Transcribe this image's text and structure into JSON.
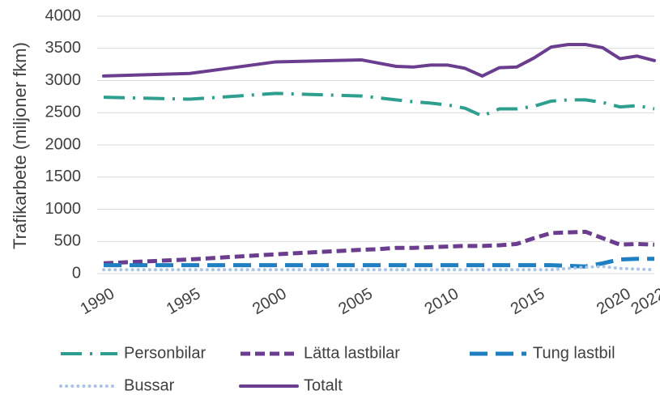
{
  "chart_data": {
    "type": "line",
    "y_label": "Trafikarbete (miljoner fkm)",
    "x": [
      1990,
      1995,
      2000,
      2005,
      2006,
      2007,
      2008,
      2009,
      2010,
      2011,
      2012,
      2013,
      2014,
      2015,
      2016,
      2017,
      2018,
      2019,
      2020,
      2021,
      2022
    ],
    "series": [
      {
        "name": "Personbilar",
        "color": "#2e9e8e",
        "dash": "long-dash-dot",
        "values": [
          2740,
          2710,
          2800,
          2760,
          2730,
          2700,
          2670,
          2650,
          2620,
          2570,
          2450,
          2560,
          2560,
          2600,
          2680,
          2700,
          2700,
          2660,
          2590,
          2610,
          2560
        ]
      },
      {
        "name": "Lätta lastbilar",
        "color": "#6b3d8f",
        "dash": "dash",
        "values": [
          160,
          220,
          300,
          370,
          380,
          400,
          400,
          410,
          420,
          430,
          430,
          440,
          460,
          550,
          630,
          640,
          650,
          550,
          450,
          460,
          450
        ]
      },
      {
        "name": "Tung lastbil",
        "color": "#1f7fc0",
        "dash": "long-dash",
        "values": [
          130,
          130,
          130,
          130,
          130,
          130,
          130,
          130,
          130,
          130,
          130,
          130,
          130,
          130,
          130,
          120,
          110,
          160,
          220,
          230,
          230
        ]
      },
      {
        "name": "Bussar",
        "color": "#a9c4e4",
        "dash": "dot",
        "values": [
          60,
          60,
          60,
          60,
          60,
          60,
          60,
          60,
          60,
          60,
          60,
          60,
          60,
          60,
          60,
          80,
          100,
          110,
          80,
          70,
          60
        ]
      },
      {
        "name": "Totalt",
        "color": "#6b3d8f",
        "dash": "solid",
        "values": [
          3070,
          3110,
          3290,
          3320,
          3270,
          3220,
          3210,
          3240,
          3240,
          3190,
          3070,
          3200,
          3210,
          3350,
          3520,
          3560,
          3560,
          3510,
          3340,
          3380,
          3310
        ]
      }
    ],
    "xlim": [
      1990,
      2022
    ],
    "xticks": [
      1990,
      1995,
      2000,
      2005,
      2010,
      2015,
      2020,
      2022
    ],
    "ylim": [
      0,
      4000
    ],
    "yticks": [
      0,
      500,
      1000,
      1500,
      2000,
      2500,
      3000,
      3500,
      4000
    ],
    "grid": true,
    "legend": "bottom"
  }
}
